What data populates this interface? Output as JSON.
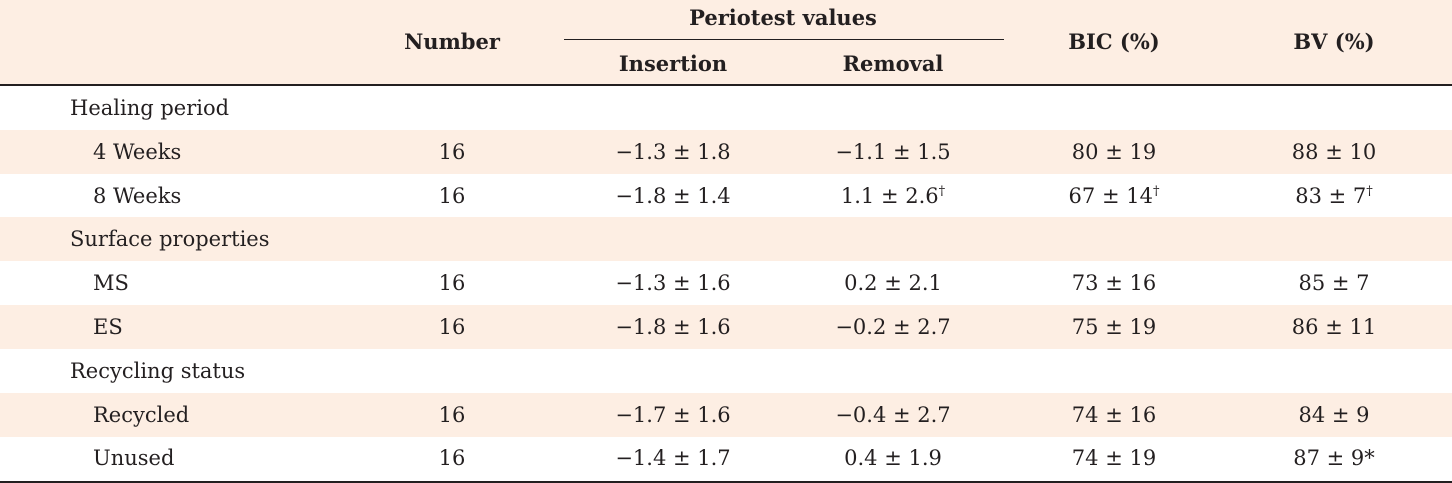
{
  "table": {
    "headers": {
      "number": "Number",
      "periotest": "Periotest values",
      "insertion": "Insertion",
      "removal": "Removal",
      "bic": "BIC (%)",
      "bv": "BV (%)"
    },
    "rows": [
      {
        "type": "group",
        "label": "Healing period"
      },
      {
        "type": "data",
        "label": "4 Weeks",
        "number": "16",
        "insertion": "−1.3 ± 1.8",
        "removal": "−1.1 ± 1.5",
        "removal_sup": "",
        "bic": "80 ± 19",
        "bic_sup": "",
        "bv": "88 ± 10",
        "bv_sup": ""
      },
      {
        "type": "data",
        "label": "8 Weeks",
        "number": "16",
        "insertion": "−1.8 ± 1.4",
        "removal": "1.1 ± 2.6",
        "removal_sup": "†",
        "bic": "67 ± 14",
        "bic_sup": "†",
        "bv": "83 ± 7",
        "bv_sup": "†"
      },
      {
        "type": "group",
        "label": "Surface properties"
      },
      {
        "type": "data",
        "label": "MS",
        "number": "16",
        "insertion": "−1.3 ± 1.6",
        "removal": "0.2 ± 2.1",
        "removal_sup": "",
        "bic": "73 ± 16",
        "bic_sup": "",
        "bv": "85 ± 7",
        "bv_sup": ""
      },
      {
        "type": "data",
        "label": "ES",
        "number": "16",
        "insertion": "−1.8 ± 1.6",
        "removal": "−0.2 ± 2.7",
        "removal_sup": "",
        "bic": "75 ± 19",
        "bic_sup": "",
        "bv": "86 ± 11",
        "bv_sup": ""
      },
      {
        "type": "group",
        "label": "Recycling status"
      },
      {
        "type": "data",
        "label": "Recycled",
        "number": "16",
        "insertion": "−1.7 ± 1.6",
        "removal": "−0.4 ± 2.7",
        "removal_sup": "",
        "bic": "74 ± 16",
        "bic_sup": "",
        "bv": "84 ± 9",
        "bv_sup": ""
      },
      {
        "type": "data",
        "label": "Unused",
        "number": "16",
        "insertion": "−1.4 ± 1.7",
        "removal": "0.4 ± 1.9",
        "removal_sup": "",
        "bic": "74 ± 19",
        "bic_sup": "",
        "bv": "87 ± 9*",
        "bv_sup": ""
      }
    ]
  }
}
